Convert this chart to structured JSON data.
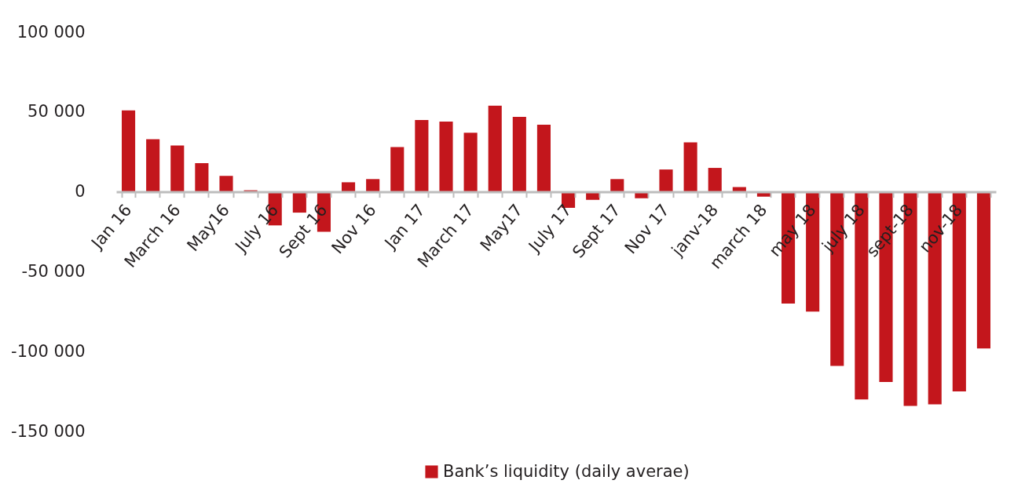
{
  "chart_data": {
    "type": "bar",
    "categories": [
      "Jan 16",
      null,
      "March 16",
      null,
      "May16",
      null,
      "July 16",
      null,
      "Sept 16",
      null,
      "Nov 16",
      null,
      "Jan 17",
      null,
      "March 17",
      null,
      "May17",
      null,
      "July 17",
      null,
      "Sept 17",
      null,
      "Nov 17",
      null,
      "janv-18",
      null,
      "march 18",
      null,
      "may 18",
      null,
      "july 18",
      null,
      "sept-18",
      null,
      "nov-18",
      null
    ],
    "series": [
      {
        "name": "Bank’s liquidity (daily averae)",
        "color": "#c3161c",
        "values": [
          51000,
          33000,
          29000,
          18000,
          10000,
          1000,
          -21000,
          -13000,
          -25000,
          6000,
          8000,
          28000,
          45000,
          44000,
          37000,
          54000,
          47000,
          42000,
          -10000,
          -5000,
          8000,
          -4000,
          14000,
          31000,
          15000,
          3000,
          -3000,
          -70000,
          -75000,
          -109000,
          -130000,
          -119000,
          -134000,
          -133000,
          -125000,
          -98000
        ]
      }
    ],
    "ylim": [
      -150000,
      100000
    ],
    "yticks": [
      {
        "value": 100000,
        "label": "100 000"
      },
      {
        "value": 50000,
        "label": "50 000"
      },
      0,
      {
        "value": -50000,
        "label": "-50 000"
      },
      {
        "value": -100000,
        "label": "-100 000"
      },
      {
        "value": -150000,
        "label": "-150 000"
      }
    ],
    "legend": "bottom"
  }
}
